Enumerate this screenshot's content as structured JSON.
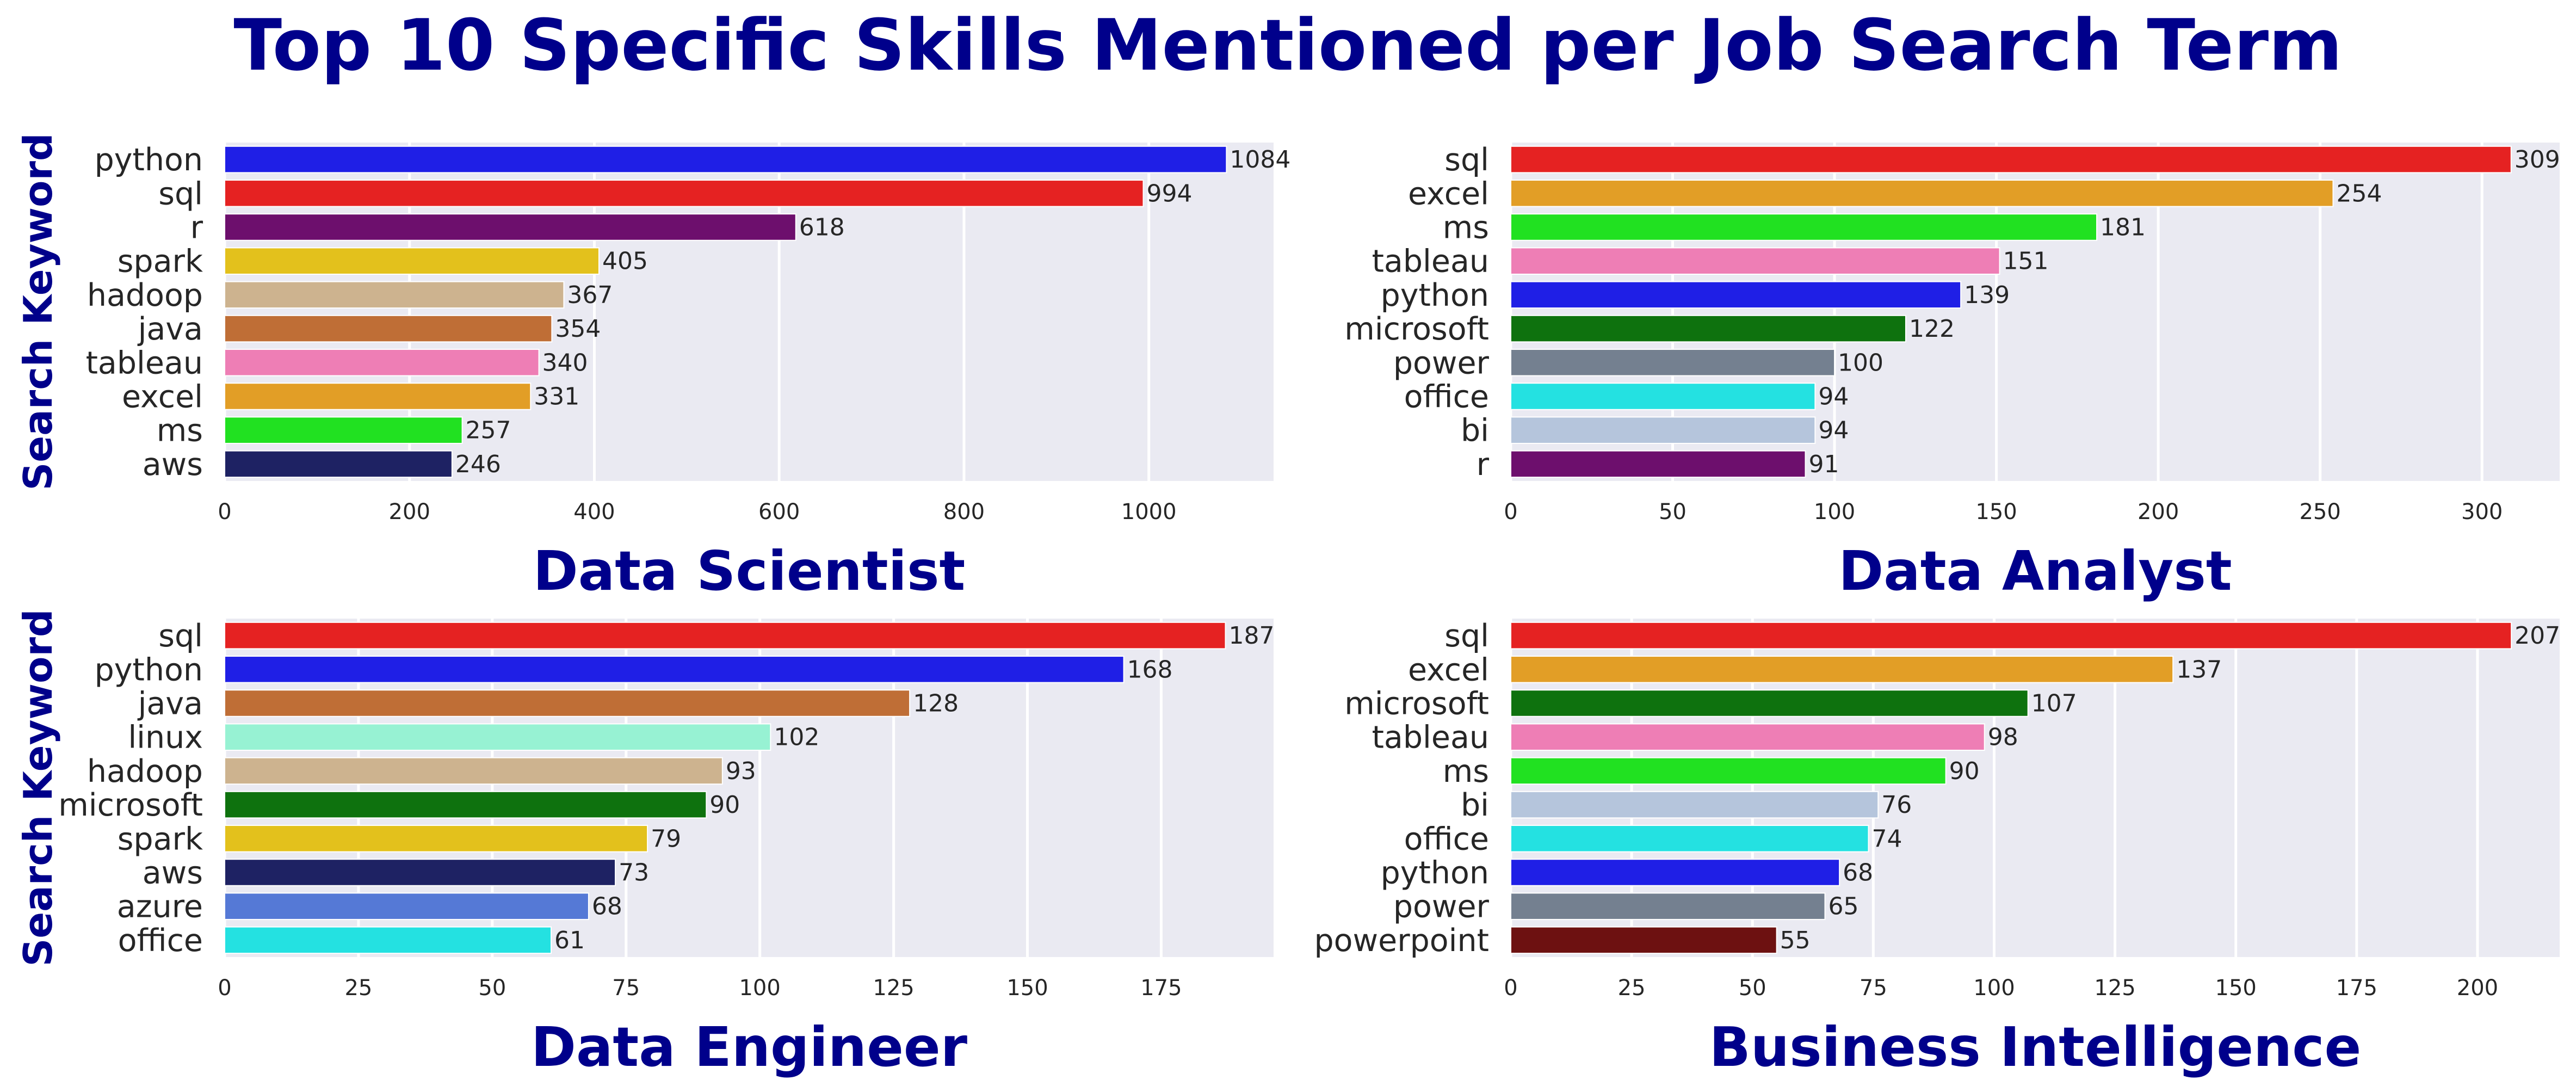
{
  "title": "Top 10 Specific Skills Mentioned per Job Search Term",
  "chart_data": [
    {
      "type": "bar",
      "orientation": "horizontal",
      "xlabel": "Data Scientist",
      "ylabel": "Search Keyword",
      "categories": [
        "python",
        "sql",
        "r",
        "spark",
        "hadoop",
        "java",
        "tableau",
        "excel",
        "ms",
        "aws"
      ],
      "values": [
        1084,
        994,
        618,
        405,
        367,
        354,
        340,
        331,
        257,
        246
      ],
      "colors": [
        "#1f1fe6",
        "#e52222",
        "#6d0f6d",
        "#e3c11c",
        "#cdb38f",
        "#bf6e36",
        "#ee7eb5",
        "#e29e26",
        "#21e121",
        "#1e2263"
      ],
      "xticks": [
        0,
        200,
        400,
        600,
        800,
        1000
      ],
      "xlim": [
        0,
        1135
      ],
      "grid": true
    },
    {
      "type": "bar",
      "orientation": "horizontal",
      "xlabel": "Data Analyst",
      "ylabel": "",
      "categories": [
        "sql",
        "excel",
        "ms",
        "tableau",
        "python",
        "microsoft",
        "power",
        "office",
        "bi",
        "r"
      ],
      "values": [
        309,
        254,
        181,
        151,
        139,
        122,
        100,
        94,
        94,
        91
      ],
      "colors": [
        "#e52222",
        "#e29e26",
        "#21e121",
        "#ee7eb5",
        "#1f1fe6",
        "#0e720e",
        "#748090",
        "#24e1e1",
        "#b5c5dc",
        "#6d0f6d"
      ],
      "xticks": [
        0,
        50,
        100,
        150,
        200,
        250,
        300
      ],
      "xlim": [
        0,
        324
      ],
      "grid": true
    },
    {
      "type": "bar",
      "orientation": "horizontal",
      "xlabel": "Data Engineer",
      "ylabel": "Search Keyword",
      "categories": [
        "sql",
        "python",
        "java",
        "linux",
        "hadoop",
        "microsoft",
        "spark",
        "aws",
        "azure",
        "office"
      ],
      "values": [
        187,
        168,
        128,
        102,
        93,
        90,
        79,
        73,
        68,
        61
      ],
      "colors": [
        "#e52222",
        "#1f1fe6",
        "#bf6e36",
        "#97f2d3",
        "#cdb38f",
        "#0e720e",
        "#e3c11c",
        "#1e2263",
        "#5579d6",
        "#24e1e1"
      ],
      "xticks": [
        0,
        25,
        50,
        75,
        100,
        125,
        150,
        175
      ],
      "xlim": [
        0,
        196
      ],
      "grid": true
    },
    {
      "type": "bar",
      "orientation": "horizontal",
      "xlabel": "Business Intelligence",
      "ylabel": "",
      "categories": [
        "sql",
        "excel",
        "microsoft",
        "tableau",
        "ms",
        "bi",
        "office",
        "python",
        "power",
        "powerpoint"
      ],
      "values": [
        207,
        137,
        107,
        98,
        90,
        76,
        74,
        68,
        65,
        55
      ],
      "colors": [
        "#e52222",
        "#e29e26",
        "#0e720e",
        "#ee7eb5",
        "#21e121",
        "#b5c5dc",
        "#24e1e1",
        "#1f1fe6",
        "#748090",
        "#6d1111"
      ],
      "xticks": [
        0,
        25,
        50,
        75,
        100,
        125,
        150,
        175,
        200
      ],
      "xlim": [
        0,
        217
      ],
      "grid": true
    }
  ]
}
